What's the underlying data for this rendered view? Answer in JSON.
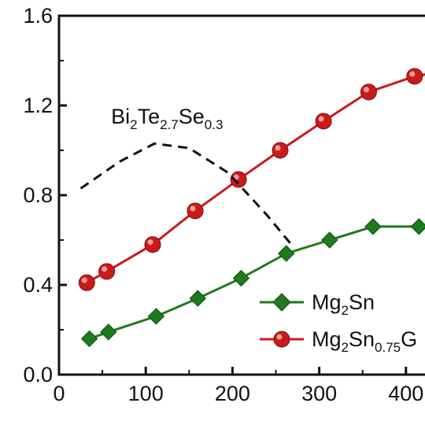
{
  "chart_data": {
    "type": "line",
    "title": "",
    "xlabel": "",
    "ylabel": "",
    "xlim": [
      0,
      420
    ],
    "ylim": [
      0,
      1.6
    ],
    "x_ticks": [
      "0",
      "100",
      "200",
      "300",
      "400"
    ],
    "y_ticks": [
      "0.0",
      "0.4",
      "0.8",
      "1.2",
      "1.6"
    ],
    "grid": false,
    "legend_position": "bottom-right",
    "series": [
      {
        "name_parts": [
          [
            "Mg",
            ""
          ],
          [
            "2",
            "sub"
          ],
          [
            "Sn",
            ""
          ]
        ],
        "color": "#1e7a1e",
        "marker": "diamond",
        "line_style": "solid",
        "x": [
          35,
          57,
          112,
          160,
          210,
          262,
          312,
          362,
          415
        ],
        "y": [
          0.16,
          0.19,
          0.26,
          0.34,
          0.43,
          0.54,
          0.6,
          0.66,
          0.66
        ]
      },
      {
        "name_parts": [
          [
            "Mg",
            ""
          ],
          [
            "2",
            "sub"
          ],
          [
            "Sn",
            ""
          ],
          [
            "0.75",
            "sub"
          ],
          [
            "G",
            ""
          ]
        ],
        "color": "#cc1a1a",
        "marker": "circle",
        "line_style": "solid",
        "x": [
          32,
          55,
          108,
          157,
          207,
          255,
          305,
          357,
          410,
          440
        ],
        "y": [
          0.41,
          0.46,
          0.58,
          0.73,
          0.87,
          1.0,
          1.13,
          1.26,
          1.33,
          1.35
        ]
      },
      {
        "color": "#111111",
        "marker": "none",
        "line_style": "dashed",
        "x": [
          25,
          70,
          110,
          150,
          195,
          240,
          270
        ],
        "y": [
          0.83,
          0.95,
          1.03,
          1.01,
          0.9,
          0.71,
          0.57
        ]
      }
    ],
    "annotations": [
      {
        "parts": [
          [
            "Bi",
            ""
          ],
          [
            "2",
            "sub"
          ],
          [
            "Te",
            ""
          ],
          [
            "2.7",
            "sub"
          ],
          [
            "Se",
            ""
          ],
          [
            "0.3",
            "sub"
          ]
        ],
        "x": 60,
        "y": 1.12
      }
    ]
  }
}
